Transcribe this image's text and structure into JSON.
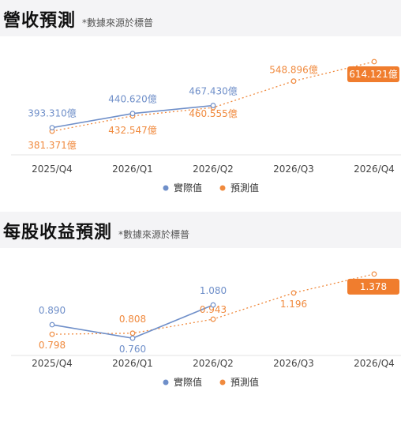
{
  "legend": {
    "actual": "實際值",
    "forecast": "預測值"
  },
  "colors": {
    "actual": "#6f8fc9",
    "forecast": "#f08a3e",
    "badge": "#f07d2e"
  },
  "chart_data": [
    {
      "type": "line",
      "title": "營收預測",
      "subtitle": "*數據來源於標普",
      "categories": [
        "2025/Q4",
        "2026/Q1",
        "2026/Q2",
        "2026/Q3",
        "2026/Q4"
      ],
      "ylim": [
        350,
        630
      ],
      "series": [
        {
          "name": "實際值",
          "values": [
            393.31,
            440.62,
            467.43,
            null,
            null
          ],
          "labels": [
            "393.310億",
            "440.620億",
            "467.430億",
            "",
            ""
          ]
        },
        {
          "name": "預測值",
          "values": [
            381.371,
            432.547,
            460.555,
            548.896,
            614.121
          ],
          "labels": [
            "381.371億",
            "432.547億",
            "460.555億",
            "548.896億",
            "614.121億"
          ]
        }
      ]
    },
    {
      "type": "line",
      "title": "每股收益預測",
      "subtitle": "*數據來源於標普",
      "categories": [
        "2025/Q4",
        "2026/Q1",
        "2026/Q2",
        "2026/Q3",
        "2026/Q4"
      ],
      "ylim": [
        0.7,
        1.4
      ],
      "series": [
        {
          "name": "實際值",
          "values": [
            0.89,
            0.76,
            1.08,
            null,
            null
          ],
          "labels": [
            "0.890",
            "0.760",
            "1.080",
            "",
            ""
          ]
        },
        {
          "name": "預測值",
          "values": [
            0.798,
            0.808,
            0.943,
            1.196,
            1.378
          ],
          "labels": [
            "0.798",
            "0.808",
            "0.943",
            "1.196",
            "1.378"
          ]
        }
      ]
    }
  ]
}
